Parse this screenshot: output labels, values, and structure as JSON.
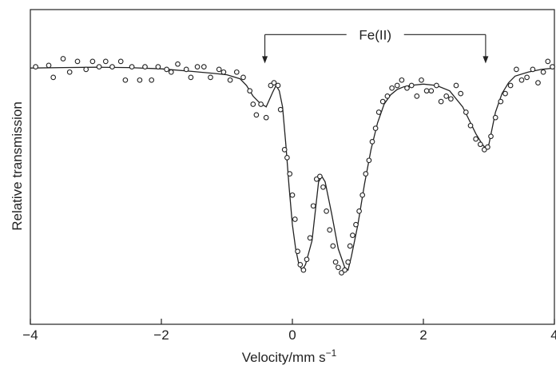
{
  "chart_data": {
    "type": "scatter",
    "title": "",
    "xlabel": "Velocity/mm s",
    "xlabel_superscript": "−1",
    "ylabel": "Relative transmission",
    "xlim": [
      -4,
      4
    ],
    "ylim": [
      0,
      1
    ],
    "x_ticks": [
      -4,
      -2,
      0,
      2,
      4
    ],
    "x_tick_labels": [
      "−4",
      "−2",
      "0",
      "2",
      "4"
    ],
    "y_tick_labels_shown": false,
    "grid": false,
    "legend": "none",
    "colors": {
      "line": "#222222",
      "marker_edge": "#222222",
      "marker_fill": "#ffffff"
    },
    "annotation": {
      "label": "Fe(II)",
      "arrow_from_x": -0.42,
      "arrow_to_x": 2.95,
      "level_y": 0.99
    },
    "fit_curve": {
      "name": "",
      "x": [
        -4.0,
        -3.5,
        -3.0,
        -2.5,
        -2.0,
        -1.5,
        -1.2,
        -1.0,
        -0.8,
        -0.7,
        -0.6,
        -0.5,
        -0.4,
        -0.3,
        -0.25,
        -0.2,
        -0.15,
        -0.1,
        -0.05,
        0.0,
        0.05,
        0.1,
        0.15,
        0.2,
        0.3,
        0.4,
        0.45,
        0.5,
        0.6,
        0.7,
        0.8,
        0.85,
        0.9,
        1.0,
        1.1,
        1.2,
        1.3,
        1.4,
        1.5,
        1.6,
        1.7,
        1.8,
        2.0,
        2.2,
        2.4,
        2.6,
        2.7,
        2.8,
        2.9,
        2.95,
        3.0,
        3.1,
        3.2,
        3.3,
        3.4,
        3.6,
        3.8,
        4.0
      ],
      "y": [
        0.865,
        0.867,
        0.868,
        0.867,
        0.862,
        0.852,
        0.845,
        0.84,
        0.825,
        0.8,
        0.76,
        0.735,
        0.72,
        0.775,
        0.8,
        0.78,
        0.72,
        0.58,
        0.42,
        0.28,
        0.19,
        0.13,
        0.11,
        0.13,
        0.22,
        0.44,
        0.46,
        0.44,
        0.32,
        0.19,
        0.12,
        0.11,
        0.16,
        0.28,
        0.43,
        0.56,
        0.66,
        0.73,
        0.765,
        0.785,
        0.795,
        0.8,
        0.805,
        0.8,
        0.78,
        0.72,
        0.67,
        0.62,
        0.58,
        0.565,
        0.58,
        0.7,
        0.77,
        0.81,
        0.835,
        0.85,
        0.86,
        0.865
      ]
    },
    "series": [
      {
        "name": "",
        "x": [
          -3.92,
          -3.72,
          -3.65,
          -3.5,
          -3.4,
          -3.28,
          -3.15,
          -3.05,
          -2.95,
          -2.85,
          -2.75,
          -2.62,
          -2.55,
          -2.45,
          -2.33,
          -2.25,
          -2.15,
          -2.05,
          -1.92,
          -1.85,
          -1.75,
          -1.62,
          -1.55,
          -1.45,
          -1.35,
          -1.25,
          -1.12,
          -1.05,
          -0.95,
          -0.85,
          -0.75,
          -0.65,
          -0.6,
          -0.55,
          -0.48,
          -0.4,
          -0.33,
          -0.28,
          -0.22,
          -0.18,
          -0.12,
          -0.08,
          -0.04,
          0.0,
          0.04,
          0.08,
          0.12,
          0.17,
          0.22,
          0.27,
          0.32,
          0.37,
          0.42,
          0.47,
          0.52,
          0.57,
          0.62,
          0.66,
          0.7,
          0.75,
          0.8,
          0.85,
          0.88,
          0.92,
          0.97,
          1.02,
          1.07,
          1.12,
          1.17,
          1.22,
          1.27,
          1.32,
          1.38,
          1.45,
          1.52,
          1.6,
          1.67,
          1.75,
          1.82,
          1.9,
          1.97,
          2.05,
          2.12,
          2.2,
          2.27,
          2.35,
          2.42,
          2.5,
          2.57,
          2.65,
          2.72,
          2.8,
          2.87,
          2.93,
          2.98,
          3.03,
          3.1,
          3.18,
          3.25,
          3.33,
          3.42,
          3.5,
          3.58,
          3.67,
          3.75,
          3.83,
          3.9,
          3.97
        ],
        "y": [
          0.87,
          0.875,
          0.83,
          0.9,
          0.85,
          0.89,
          0.86,
          0.89,
          0.87,
          0.89,
          0.87,
          0.89,
          0.82,
          0.87,
          0.82,
          0.87,
          0.82,
          0.87,
          0.86,
          0.85,
          0.88,
          0.86,
          0.83,
          0.87,
          0.87,
          0.83,
          0.86,
          0.85,
          0.82,
          0.85,
          0.83,
          0.78,
          0.73,
          0.69,
          0.73,
          0.68,
          0.8,
          0.81,
          0.8,
          0.71,
          0.56,
          0.53,
          0.47,
          0.39,
          0.3,
          0.18,
          0.13,
          0.11,
          0.15,
          0.23,
          0.35,
          0.45,
          0.46,
          0.42,
          0.33,
          0.26,
          0.2,
          0.14,
          0.12,
          0.1,
          0.11,
          0.14,
          0.2,
          0.24,
          0.28,
          0.33,
          0.39,
          0.47,
          0.52,
          0.59,
          0.64,
          0.7,
          0.74,
          0.76,
          0.79,
          0.8,
          0.82,
          0.79,
          0.8,
          0.76,
          0.82,
          0.78,
          0.78,
          0.8,
          0.74,
          0.76,
          0.75,
          0.8,
          0.77,
          0.7,
          0.65,
          0.6,
          0.58,
          0.56,
          0.57,
          0.61,
          0.68,
          0.74,
          0.77,
          0.8,
          0.86,
          0.82,
          0.83,
          0.86,
          0.81,
          0.85,
          0.89,
          0.87
        ]
      }
    ]
  }
}
